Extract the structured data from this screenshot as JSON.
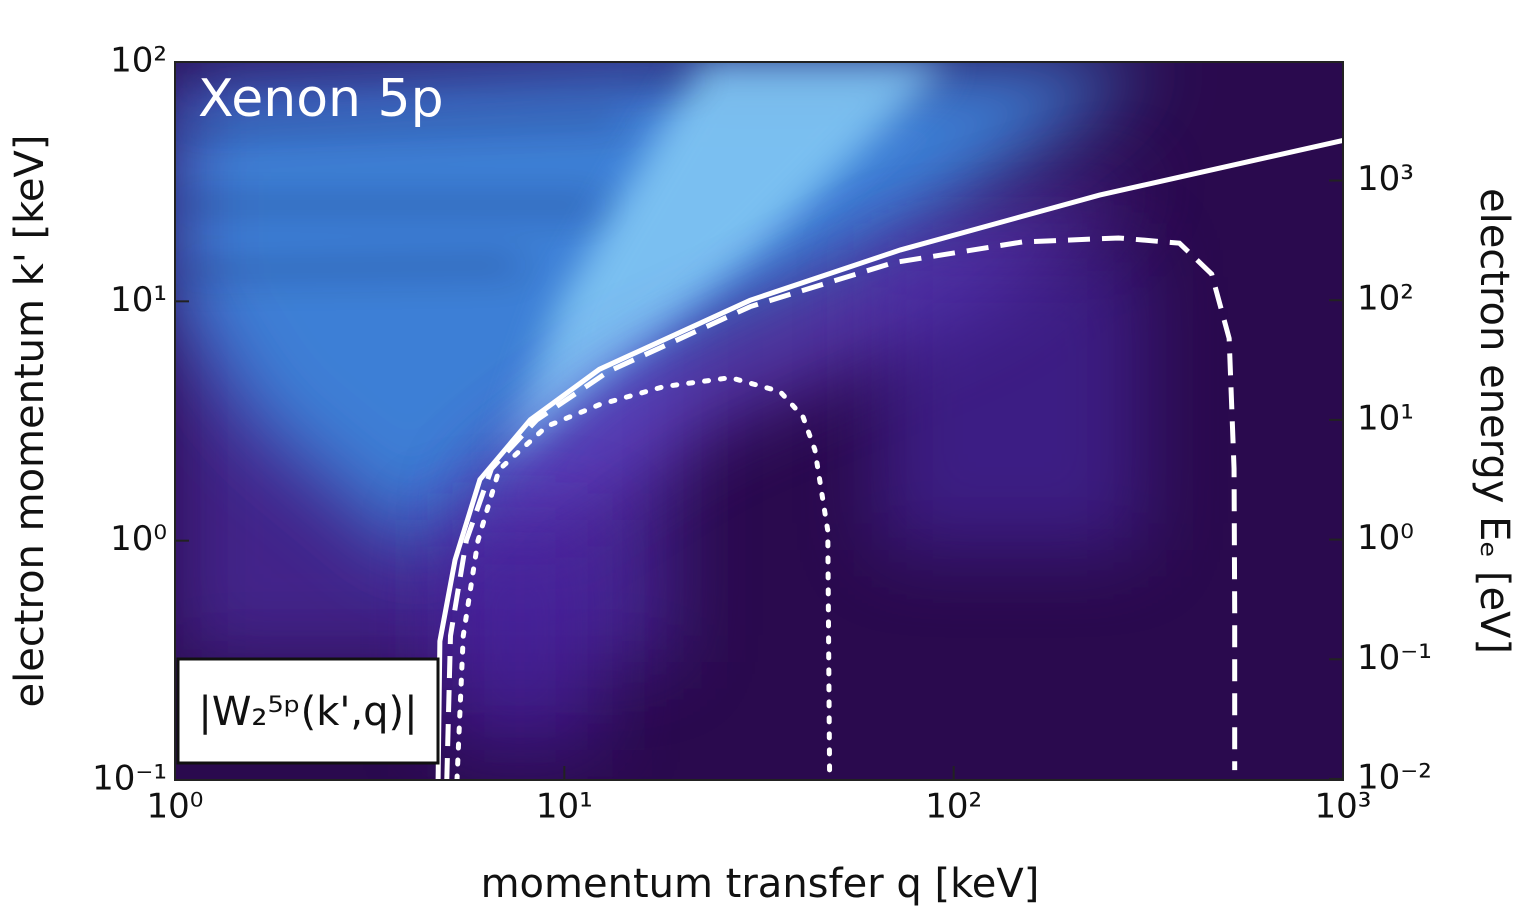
{
  "chart_data": {
    "type": "line",
    "title": "Xenon 5p",
    "annotation": "|W₂⁵ᵖ(k',q)|",
    "x_label": "momentum transfer q [keV]",
    "y_label": "electron momentum k' [keV]",
    "y2_label": "electron energy Eₑ [eV]",
    "x_log": true,
    "y_log": true,
    "y2_log": true,
    "xlim": [
      1,
      1000
    ],
    "xticks": [
      {
        "value": 1,
        "label": "10⁰"
      },
      {
        "value": 10,
        "label": "10¹"
      },
      {
        "value": 100,
        "label": "10²"
      },
      {
        "value": 1000,
        "label": "10³"
      }
    ],
    "ylim": [
      0.1,
      100
    ],
    "yticks": [
      {
        "value": 0.1,
        "label": "10⁻¹"
      },
      {
        "value": 1,
        "label": "10⁰"
      },
      {
        "value": 10,
        "label": "10¹"
      },
      {
        "value": 100,
        "label": "10²"
      }
    ],
    "y2lim": [
      0.0098,
      9785
    ],
    "y2ticks": [
      {
        "value": 0.01,
        "label": "10⁻²"
      },
      {
        "value": 0.1,
        "label": "10⁻¹"
      },
      {
        "value": 1,
        "label": "10⁰"
      },
      {
        "value": 10,
        "label": "10¹"
      },
      {
        "value": 100,
        "label": "10²"
      },
      {
        "value": 1000,
        "label": "10³"
      }
    ],
    "series": [
      {
        "style": "solid",
        "color": "#ffffff",
        "x": [
          4.74,
          4.79,
          5.24,
          6.07,
          8.18,
          12.3,
          30,
          73,
          237,
          1000
        ],
        "values": [
          0.1,
          0.38,
          0.83,
          1.8,
          3.2,
          5.2,
          10.1,
          16.4,
          27.8,
          47
        ]
      },
      {
        "style": "dashed",
        "color": "#ffffff",
        "x": [
          4.99,
          5.1,
          5.6,
          6.5,
          8.5,
          13,
          30,
          70,
          150,
          265,
          380,
          460,
          510,
          525,
          527,
          527
        ],
        "values": [
          0.1,
          0.4,
          1.0,
          2.0,
          3.2,
          5.1,
          9.5,
          14.5,
          17.7,
          18.4,
          17.5,
          13,
          7,
          2,
          0.5,
          0.11
        ]
      },
      {
        "style": "dotted",
        "color": "#ffffff",
        "x": [
          5.3,
          5.5,
          6.0,
          6.8,
          9,
          12.3,
          18,
          26.7,
          35.8,
          41,
          44,
          47.5,
          48
        ],
        "values": [
          0.1,
          0.4,
          1.0,
          1.98,
          3.0,
          3.7,
          4.4,
          4.8,
          4.2,
          3.3,
          2.4,
          1.1,
          0.11
        ]
      }
    ]
  }
}
